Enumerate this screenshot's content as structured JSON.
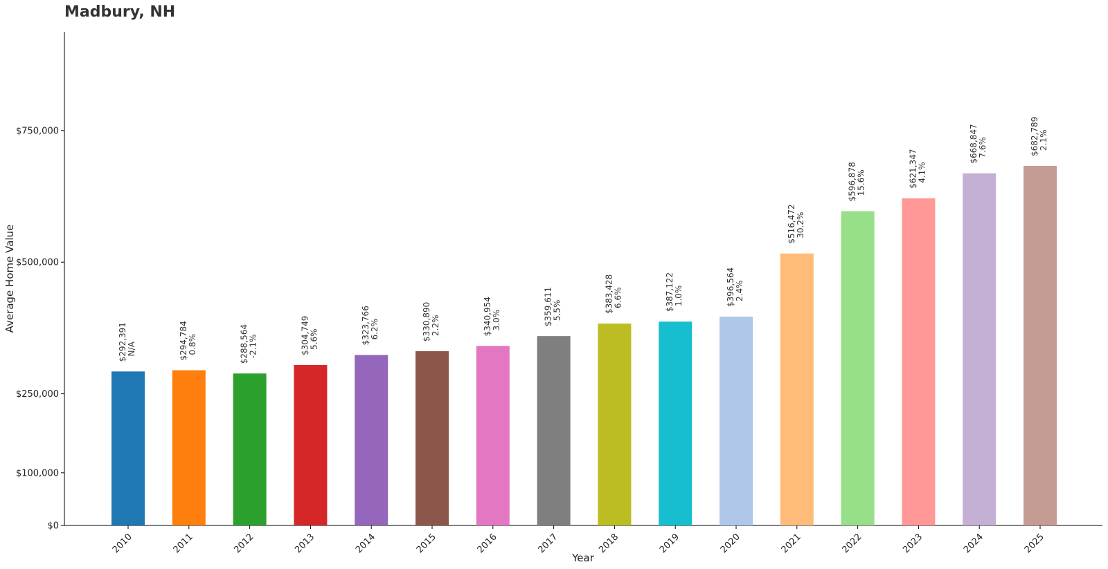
{
  "chart_data": {
    "type": "bar",
    "title": "Madbury, NH",
    "xlabel": "Year",
    "ylabel": "Average Home Value",
    "ylim": [
      0,
      937500
    ],
    "yticks": [
      {
        "value": 0,
        "label": "$0"
      },
      {
        "value": 100000,
        "label": "$100,000"
      },
      {
        "value": 250000,
        "label": "$250,000"
      },
      {
        "value": 500000,
        "label": "$500,000"
      },
      {
        "value": 750000,
        "label": "$750,000"
      }
    ],
    "grid": false,
    "categories": [
      "2010",
      "2011",
      "2012",
      "2013",
      "2014",
      "2015",
      "2016",
      "2017",
      "2018",
      "2019",
      "2020",
      "2021",
      "2022",
      "2023",
      "2024",
      "2025"
    ],
    "values": [
      292391,
      294784,
      288564,
      304749,
      323766,
      330890,
      340954,
      359611,
      383428,
      387122,
      396564,
      516472,
      596878,
      621347,
      668847,
      682789
    ],
    "value_labels": [
      "$292,391",
      "$294,784",
      "$288,564",
      "$304,749",
      "$323,766",
      "$330,890",
      "$340,954",
      "$359,611",
      "$383,428",
      "$387,122",
      "$396,564",
      "$516,472",
      "$596,878",
      "$621,347",
      "$668,847",
      "$682,789"
    ],
    "change_labels": [
      "N/A",
      "0.8%",
      "-2.1%",
      "5.6%",
      "6.2%",
      "2.2%",
      "3.0%",
      "5.5%",
      "6.6%",
      "1.0%",
      "2.4%",
      "30.2%",
      "15.6%",
      "4.1%",
      "7.6%",
      "2.1%"
    ],
    "colors": [
      "#1f77b4",
      "#ff7f0e",
      "#2ca02c",
      "#d62728",
      "#9467bd",
      "#8c564b",
      "#e377c2",
      "#7f7f7f",
      "#bcbd22",
      "#17becf",
      "#aec7e8",
      "#ffbb78",
      "#98df8a",
      "#ff9896",
      "#c5b0d5",
      "#c49c94"
    ]
  }
}
